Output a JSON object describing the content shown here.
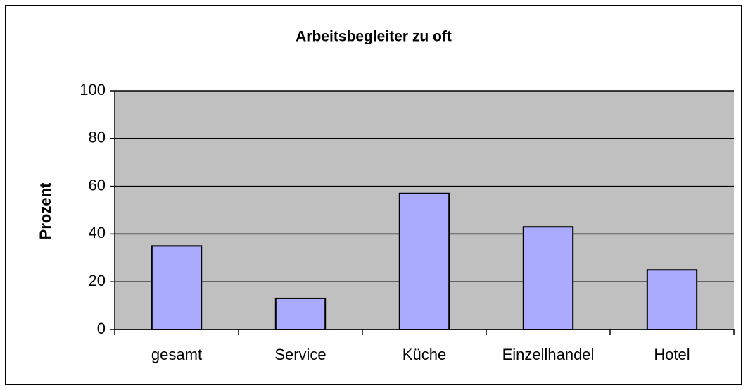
{
  "chart_data": {
    "type": "bar",
    "title": "Arbeitsbegleiter zu oft",
    "ylabel": "Prozent",
    "categories": [
      "gesamt",
      "Service",
      "Küche",
      "Einzellhandel",
      "Hotel"
    ],
    "values": [
      35,
      13,
      57,
      43,
      25
    ],
    "color": "#aaaaff",
    "ylim": [
      0,
      100
    ],
    "yticks": [
      0,
      20,
      40,
      60,
      80,
      100
    ],
    "grid": true
  }
}
